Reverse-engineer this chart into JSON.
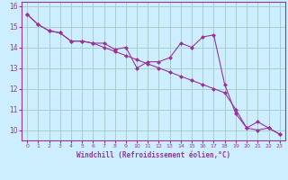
{
  "xlabel": "Windchill (Refroidissement éolien,°C)",
  "bg_color": "#cceeff",
  "line_color": "#993399",
  "grid_color": "#aacccc",
  "x_data": [
    0,
    1,
    2,
    3,
    4,
    5,
    6,
    7,
    8,
    9,
    10,
    11,
    12,
    13,
    14,
    15,
    16,
    17,
    18,
    19,
    20,
    21,
    22,
    23
  ],
  "line1_y": [
    15.6,
    15.1,
    14.8,
    14.7,
    14.3,
    14.3,
    14.2,
    14.2,
    13.9,
    14.0,
    13.0,
    13.3,
    13.3,
    13.5,
    14.2,
    14.0,
    14.5,
    14.6,
    12.2,
    10.8,
    10.1,
    10.4,
    10.1,
    9.8
  ],
  "line2_y": [
    15.6,
    15.1,
    14.8,
    14.7,
    14.3,
    14.3,
    14.2,
    14.0,
    13.8,
    13.6,
    13.4,
    13.2,
    13.0,
    12.8,
    12.6,
    12.4,
    12.2,
    12.0,
    11.8,
    11.0,
    10.1,
    10.0,
    10.1,
    9.8
  ],
  "ylim": [
    9.5,
    16.2
  ],
  "xlim": [
    -0.5,
    23.5
  ],
  "yticks": [
    10,
    11,
    12,
    13,
    14,
    15,
    16
  ],
  "xticks": [
    0,
    1,
    2,
    3,
    4,
    5,
    6,
    7,
    8,
    9,
    10,
    11,
    12,
    13,
    14,
    15,
    16,
    17,
    18,
    19,
    20,
    21,
    22,
    23
  ]
}
